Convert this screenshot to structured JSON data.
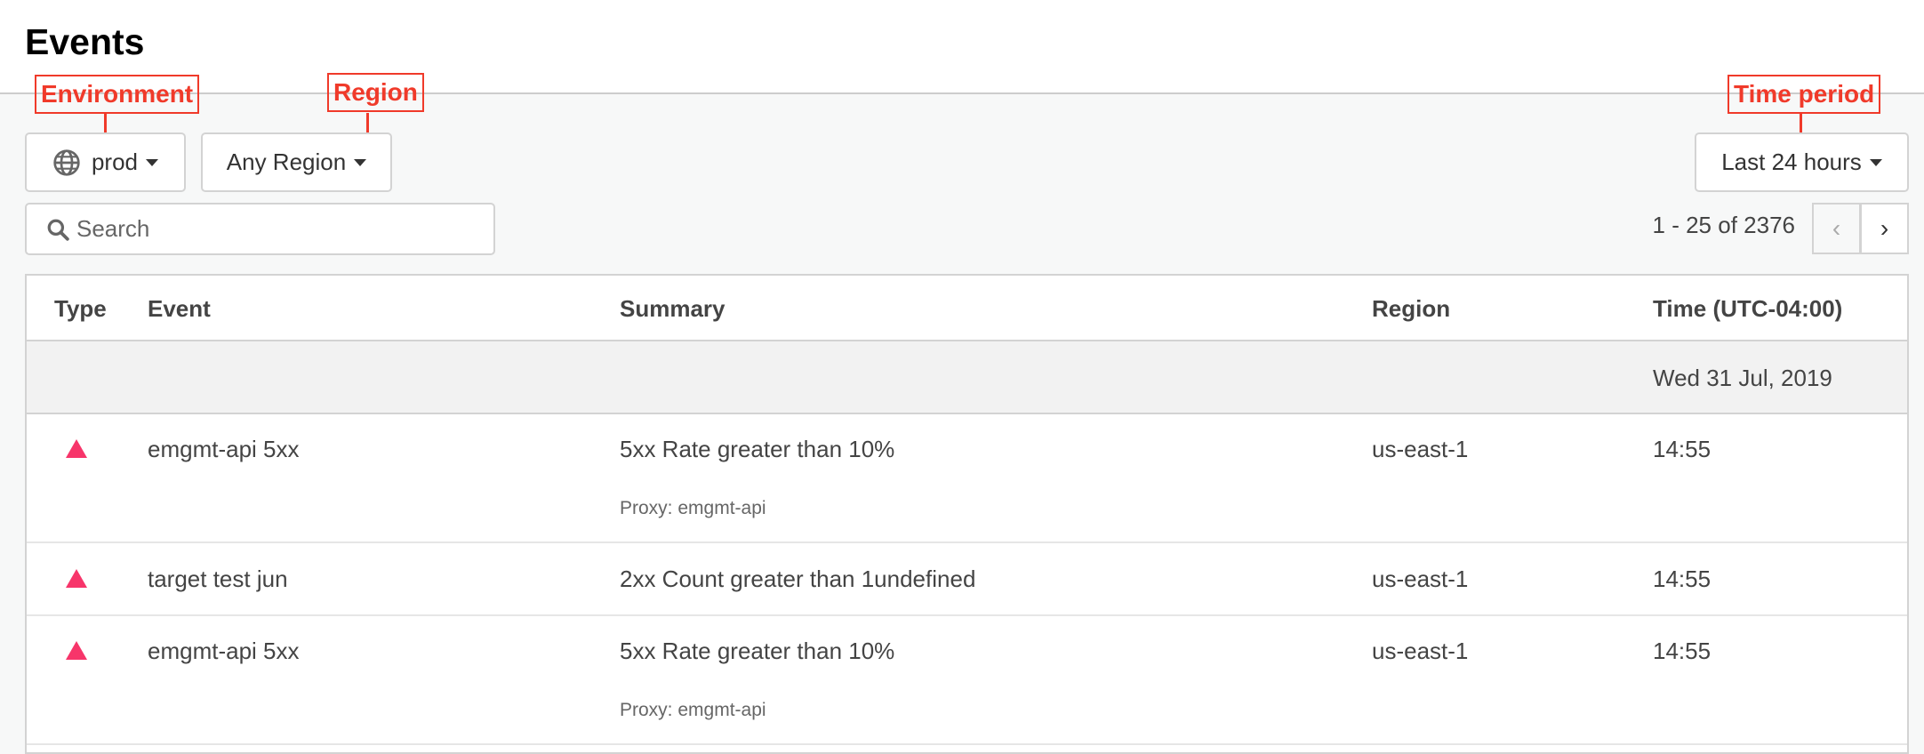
{
  "page": {
    "title": "Events"
  },
  "annotations": {
    "environment": "Environment",
    "region": "Region",
    "time_period": "Time period",
    "color": "#f03a2a"
  },
  "filters": {
    "environment": {
      "icon": "globe-icon",
      "value": "prod"
    },
    "region": {
      "value": "Any Region"
    },
    "time_period": {
      "value": "Last 24 hours"
    }
  },
  "search": {
    "placeholder": "Search",
    "value": ""
  },
  "pagination": {
    "text": "1 - 25 of 2376",
    "prev": "‹",
    "next": "›"
  },
  "table": {
    "columns": [
      "Type",
      "Event",
      "Summary",
      "Region",
      "Time (UTC-04:00)"
    ],
    "date_group": "Wed 31 Jul, 2019",
    "rows": [
      {
        "type": "alert",
        "event": "emgmt-api 5xx",
        "summary": "5xx Rate greater than 10%",
        "detail": "Proxy: emgmt-api",
        "region": "us-east-1",
        "time": "14:55"
      },
      {
        "type": "alert",
        "event": "target test jun",
        "summary": "2xx Count greater than 1undefined",
        "detail": "",
        "region": "us-east-1",
        "time": "14:55"
      },
      {
        "type": "alert",
        "event": "emgmt-api 5xx",
        "summary": "5xx Rate greater than 10%",
        "detail": "Proxy: emgmt-api",
        "region": "us-east-1",
        "time": "14:55"
      }
    ],
    "alert_color": "#f7356a"
  }
}
